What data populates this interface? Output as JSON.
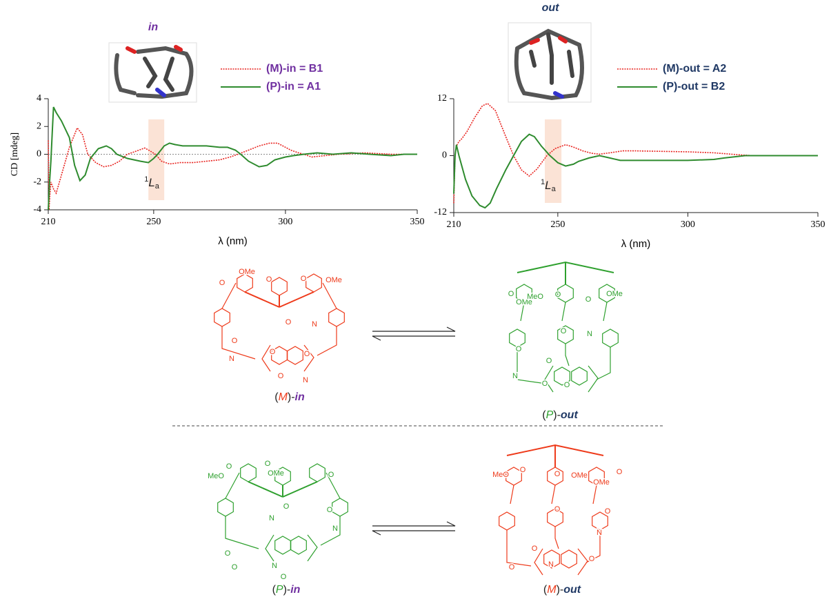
{
  "chart_data": [
    {
      "type": "line",
      "title": "in",
      "title_color": "#7030a0",
      "xlabel": "λ (nm)",
      "ylabel": "CD [mdeg]",
      "xlim": [
        210,
        350
      ],
      "ylim": [
        -4,
        4
      ],
      "xticks": [
        210,
        250,
        300,
        350
      ],
      "yticks": [
        -4,
        -2,
        0,
        2,
        4
      ],
      "zero_line": true,
      "legend": "top",
      "annotation": {
        "sup": "1",
        "text": "L",
        "sub": "a",
        "band": [
          248,
          254
        ]
      },
      "series": [
        {
          "name": "(M)-in = B1",
          "color": "#e8231f",
          "dash": "dotted",
          "x": [
            210,
            210.3,
            210.6,
            211,
            212,
            213,
            215,
            218,
            221,
            223,
            225,
            228,
            231,
            234,
            237,
            240,
            243,
            246.6,
            249,
            250.6,
            253,
            256,
            260,
            265,
            270,
            275,
            279,
            282,
            286,
            290,
            294,
            297,
            300,
            302,
            305,
            307,
            310,
            315,
            320,
            330,
            340,
            350
          ],
          "values": [
            1,
            -4,
            -3,
            -2,
            -2.5,
            -2.8,
            -1.5,
            0.5,
            1.9,
            1.4,
            0,
            -0.6,
            -0.9,
            -0.8,
            -0.5,
            0,
            0.2,
            0.45,
            0.2,
            0,
            -0.5,
            -0.7,
            -0.6,
            -0.6,
            -0.5,
            -0.4,
            -0.2,
            0,
            0.3,
            0.6,
            0.8,
            0.8,
            0.5,
            0.3,
            0.1,
            0,
            -0.2,
            -0.1,
            0,
            0.1,
            0,
            0
          ]
        },
        {
          "name": "(P)-in = A1",
          "color": "#2e8b2e",
          "dash": "solid",
          "x": [
            210,
            210.5,
            211,
            211.5,
            212,
            213,
            215,
            218,
            220,
            222,
            224,
            226,
            229,
            232,
            234,
            236,
            240,
            245,
            248,
            250,
            251.5,
            254,
            256,
            258,
            261,
            265,
            270,
            275,
            278,
            281,
            283,
            286,
            290,
            293,
            296,
            300,
            303,
            307,
            312,
            318,
            325,
            332,
            340,
            345,
            350
          ],
          "values": [
            -4,
            -2,
            -0.5,
            1.5,
            3.4,
            3.0,
            2.4,
            1.2,
            -0.8,
            -1.9,
            -1.5,
            -0.3,
            0.4,
            0.6,
            0.4,
            0,
            -0.3,
            -0.5,
            -0.6,
            -0.3,
            0,
            0.6,
            0.8,
            0.7,
            0.6,
            0.6,
            0.6,
            0.5,
            0.5,
            0.3,
            0,
            -0.5,
            -0.9,
            -0.8,
            -0.4,
            -0.2,
            -0.1,
            0,
            0.1,
            0,
            0.1,
            0,
            -0.1,
            0,
            0
          ]
        }
      ]
    },
    {
      "type": "line",
      "title": "out",
      "title_color": "#1f3864",
      "xlabel": "λ (nm)",
      "xlim": [
        210,
        350
      ],
      "ylim": [
        -12,
        12
      ],
      "xticks": [
        210,
        250,
        300,
        350
      ],
      "yticks": [
        -12,
        0,
        12
      ],
      "zero_line": false,
      "legend": "top",
      "annotation": {
        "sup": "1",
        "text": "L",
        "sub": "a",
        "band": [
          245,
          251.4
        ]
      },
      "series": [
        {
          "name": "(M)-out = A2",
          "color": "#e8231f",
          "dash": "dotted",
          "x": [
            210,
            210.5,
            211,
            212,
            213,
            215,
            218,
            221,
            223,
            226,
            230,
            233,
            236,
            239,
            242,
            245.8,
            249,
            253,
            256,
            259.6,
            263,
            266,
            270,
            275,
            280,
            290,
            300,
            310,
            319,
            325,
            335,
            350
          ],
          "values": [
            -10,
            0,
            2,
            3,
            3.5,
            5,
            8,
            10.5,
            11,
            9.5,
            4,
            0,
            -3,
            -4.3,
            -2.8,
            0,
            1.5,
            2.3,
            1.8,
            1,
            0.5,
            0.3,
            0.6,
            1,
            1,
            0.9,
            0.8,
            0.6,
            0.2,
            0,
            0,
            0
          ]
        },
        {
          "name": "(P)-out = B2",
          "color": "#2e8b2e",
          "dash": "solid",
          "x": [
            210,
            210.5,
            211,
            212,
            213,
            214.5,
            217,
            220,
            222,
            224,
            226.4,
            230,
            233,
            236,
            239,
            241,
            243.7,
            247,
            250,
            253,
            256,
            258,
            262,
            266,
            270,
            274,
            280,
            290,
            300,
            310,
            314,
            322,
            335,
            350
          ],
          "values": [
            -8,
            0,
            2.3,
            0,
            -2,
            -5,
            -8.5,
            -10.5,
            -11,
            -10,
            -7,
            -3,
            0,
            3,
            4.5,
            4,
            2,
            0,
            -1.5,
            -2.2,
            -1.8,
            -1.2,
            -0.5,
            0,
            -0.5,
            -1,
            -1,
            -1,
            -1,
            -0.8,
            -0.5,
            0,
            0,
            0
          ]
        }
      ]
    }
  ],
  "structures": [
    {
      "caption": [
        "(",
        "M",
        ")-",
        "in"
      ],
      "color": "#ee3a1a",
      "caption_color": "#7030a0",
      "form": "in",
      "atoms": [
        "O",
        "OMe",
        "O",
        "O",
        "OMe",
        "N",
        "O",
        "N",
        "O",
        "O",
        "O",
        "N",
        "O"
      ]
    },
    {
      "caption": [
        "(",
        "P",
        ")-",
        "out"
      ],
      "color": "#2ea02e",
      "caption_color": "#1f3864",
      "form": "out",
      "atoms": [
        "O",
        "OMe",
        "MeO",
        "O",
        "O",
        "OMe",
        "O",
        "N",
        "O",
        "O",
        "N",
        "O",
        "O"
      ]
    },
    {
      "caption": [
        "(",
        "P",
        ")-",
        "in"
      ],
      "color": "#2ea02e",
      "caption_color": "#7030a0",
      "form": "in",
      "atoms": [
        "MeO",
        "O",
        "OMe",
        "O",
        "O",
        "N",
        "O",
        "O",
        "N",
        "O",
        "O",
        "N",
        "O"
      ]
    },
    {
      "caption": [
        "(",
        "M",
        ")-",
        "out"
      ],
      "color": "#ee3a1a",
      "caption_color": "#1f3864",
      "form": "out",
      "atoms": [
        "MeO",
        "O",
        "O",
        "OMe",
        "OMe",
        "O",
        "O",
        "N",
        "O",
        "O",
        "N",
        "O",
        "O"
      ]
    }
  ]
}
